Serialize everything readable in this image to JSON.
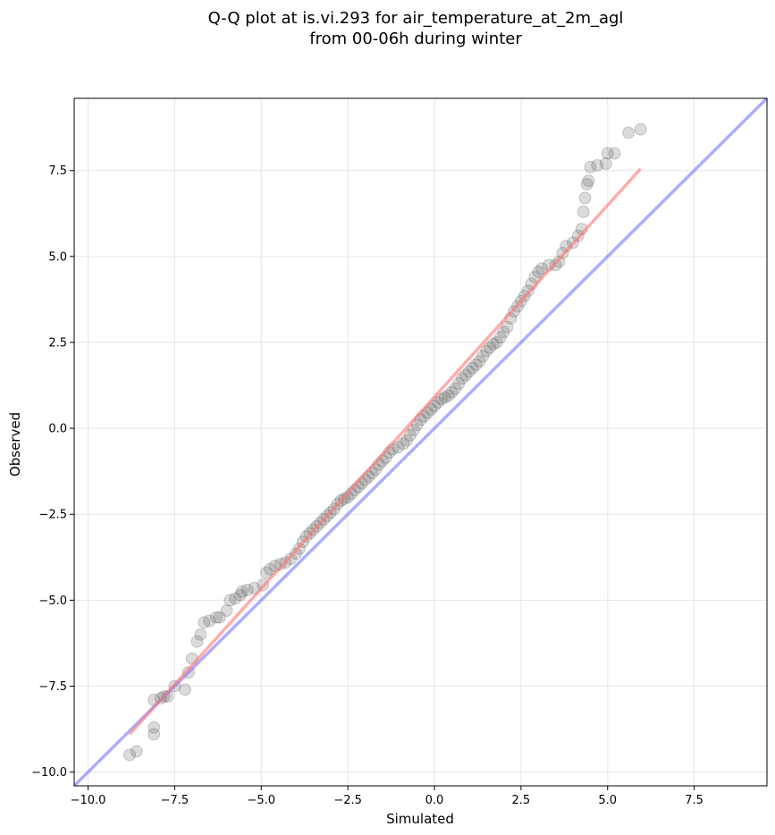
{
  "chart_data": {
    "type": "scatter",
    "title_lines": [
      "Q-Q plot at is.vi.293 for air_temperature_at_2m_agl",
      "from 00-06h during winter"
    ],
    "xlabel": "Simulated",
    "ylabel": "Observed",
    "xlim": [
      -10.4,
      9.6
    ],
    "ylim": [
      -10.4,
      9.6
    ],
    "xticks": [
      -10.0,
      -7.5,
      -5.0,
      -2.5,
      0.0,
      2.5,
      5.0,
      7.5
    ],
    "yticks": [
      -10.0,
      -7.5,
      -5.0,
      -2.5,
      0.0,
      2.5,
      5.0,
      7.5
    ],
    "xtick_labels": [
      "−10.0",
      "−7.5",
      "−5.0",
      "−2.5",
      "0.0",
      "2.5",
      "5.0",
      "7.5"
    ],
    "ytick_labels": [
      "−10.0",
      "−7.5",
      "−5.0",
      "−2.5",
      "0.0",
      "2.5",
      "5.0",
      "7.5"
    ],
    "grid": true,
    "colors": {
      "points": "#4d4d4d",
      "fit_line": "#ff7777",
      "identity_line": "#7777ff",
      "grid": "#e6e6e6"
    },
    "identity_line": {
      "from": [
        -10.4,
        -10.4
      ],
      "to": [
        9.6,
        9.6
      ]
    },
    "fit_line": {
      "from": [
        -8.8,
        -8.9
      ],
      "to": [
        5.95,
        7.55
      ]
    },
    "series": [
      {
        "points": [
          [
            -8.8,
            -9.5
          ],
          [
            -8.6,
            -9.4
          ],
          [
            -8.1,
            -8.9
          ],
          [
            -8.1,
            -8.7
          ],
          [
            -8.1,
            -7.9
          ],
          [
            -7.9,
            -7.85
          ],
          [
            -7.8,
            -7.8
          ],
          [
            -7.7,
            -7.8
          ],
          [
            -7.5,
            -7.5
          ],
          [
            -7.2,
            -7.6
          ],
          [
            -7.1,
            -7.1
          ],
          [
            -7.0,
            -6.7
          ],
          [
            -6.85,
            -6.2
          ],
          [
            -6.75,
            -6.0
          ],
          [
            -6.65,
            -5.65
          ],
          [
            -6.5,
            -5.6
          ],
          [
            -6.3,
            -5.5
          ],
          [
            -6.2,
            -5.5
          ],
          [
            -6.0,
            -5.3
          ],
          [
            -5.9,
            -5.0
          ],
          [
            -5.75,
            -4.95
          ],
          [
            -5.6,
            -4.85
          ],
          [
            -5.55,
            -4.75
          ],
          [
            -5.4,
            -4.7
          ],
          [
            -5.2,
            -4.65
          ],
          [
            -4.95,
            -4.55
          ],
          [
            -4.85,
            -4.2
          ],
          [
            -4.75,
            -4.1
          ],
          [
            -4.6,
            -4.0
          ],
          [
            -4.45,
            -3.95
          ],
          [
            -4.3,
            -3.9
          ],
          [
            -4.15,
            -3.8
          ],
          [
            -4.0,
            -3.65
          ],
          [
            -3.9,
            -3.5
          ],
          [
            -3.8,
            -3.3
          ],
          [
            -3.7,
            -3.15
          ],
          [
            -3.6,
            -3.05
          ],
          [
            -3.5,
            -2.95
          ],
          [
            -3.4,
            -2.85
          ],
          [
            -3.3,
            -2.75
          ],
          [
            -3.2,
            -2.65
          ],
          [
            -3.1,
            -2.55
          ],
          [
            -3.0,
            -2.45
          ],
          [
            -2.9,
            -2.35
          ],
          [
            -2.8,
            -2.2
          ],
          [
            -2.7,
            -2.1
          ],
          [
            -2.6,
            -2.05
          ],
          [
            -2.5,
            -2.0
          ],
          [
            -2.4,
            -1.9
          ],
          [
            -2.3,
            -1.8
          ],
          [
            -2.2,
            -1.7
          ],
          [
            -2.1,
            -1.6
          ],
          [
            -2.0,
            -1.5
          ],
          [
            -1.9,
            -1.4
          ],
          [
            -1.8,
            -1.3
          ],
          [
            -1.7,
            -1.2
          ],
          [
            -1.6,
            -1.05
          ],
          [
            -1.5,
            -0.95
          ],
          [
            -1.4,
            -0.85
          ],
          [
            -1.3,
            -0.7
          ],
          [
            -1.2,
            -0.6
          ],
          [
            -1.05,
            -0.55
          ],
          [
            -0.9,
            -0.45
          ],
          [
            -0.8,
            -0.35
          ],
          [
            -0.7,
            -0.2
          ],
          [
            -0.6,
            -0.05
          ],
          [
            -0.5,
            0.1
          ],
          [
            -0.4,
            0.25
          ],
          [
            -0.3,
            0.35
          ],
          [
            -0.2,
            0.45
          ],
          [
            -0.1,
            0.55
          ],
          [
            0.0,
            0.65
          ],
          [
            0.1,
            0.75
          ],
          [
            0.2,
            0.85
          ],
          [
            0.3,
            0.9
          ],
          [
            0.4,
            0.95
          ],
          [
            0.5,
            1.05
          ],
          [
            0.6,
            1.15
          ],
          [
            0.7,
            1.3
          ],
          [
            0.8,
            1.45
          ],
          [
            0.9,
            1.55
          ],
          [
            1.0,
            1.65
          ],
          [
            1.1,
            1.75
          ],
          [
            1.2,
            1.85
          ],
          [
            1.3,
            1.95
          ],
          [
            1.4,
            2.1
          ],
          [
            1.5,
            2.25
          ],
          [
            1.6,
            2.35
          ],
          [
            1.7,
            2.45
          ],
          [
            1.8,
            2.5
          ],
          [
            1.9,
            2.65
          ],
          [
            2.0,
            2.8
          ],
          [
            2.1,
            2.95
          ],
          [
            2.2,
            3.2
          ],
          [
            2.3,
            3.4
          ],
          [
            2.4,
            3.55
          ],
          [
            2.5,
            3.7
          ],
          [
            2.6,
            3.85
          ],
          [
            2.7,
            4.0
          ],
          [
            2.8,
            4.2
          ],
          [
            2.9,
            4.4
          ],
          [
            3.0,
            4.55
          ],
          [
            3.1,
            4.65
          ],
          [
            3.3,
            4.75
          ],
          [
            3.5,
            4.75
          ],
          [
            3.6,
            4.85
          ],
          [
            3.7,
            5.1
          ],
          [
            3.8,
            5.3
          ],
          [
            4.0,
            5.4
          ],
          [
            4.15,
            5.6
          ],
          [
            4.25,
            5.8
          ],
          [
            4.3,
            6.3
          ],
          [
            4.35,
            6.7
          ],
          [
            4.4,
            7.1
          ],
          [
            4.45,
            7.2
          ],
          [
            4.5,
            7.6
          ],
          [
            4.7,
            7.65
          ],
          [
            4.95,
            7.7
          ],
          [
            5.0,
            8.0
          ],
          [
            5.2,
            8.0
          ],
          [
            5.6,
            8.6
          ],
          [
            5.95,
            8.7
          ]
        ]
      }
    ]
  }
}
